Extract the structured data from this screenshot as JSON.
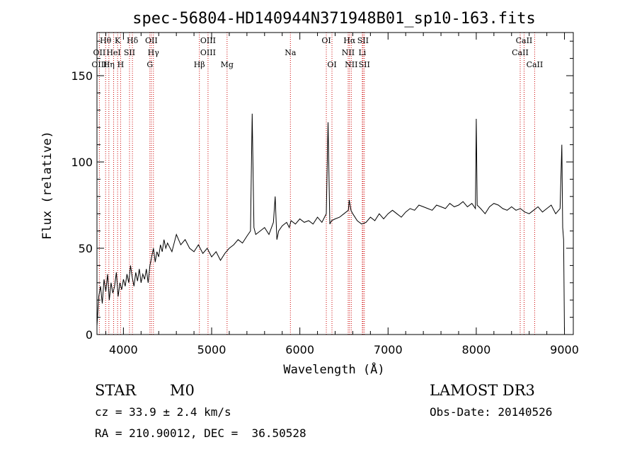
{
  "chart_data": {
    "type": "line",
    "title": "spec-56804-HD140944N371948B01_sp10-163.fits",
    "xlabel": "Wavelength (Å)",
    "ylabel": "Flux (relative)",
    "xlim": [
      3700,
      9100
    ],
    "ylim": [
      0,
      175
    ],
    "x_ticks": [
      4000,
      5000,
      6000,
      7000,
      8000,
      9000
    ],
    "y_ticks": [
      0,
      50,
      100,
      150
    ],
    "grid": false,
    "line_color": "#000000",
    "marker_color": "#cc0000",
    "series": [
      {
        "x": [
          3700,
          3720,
          3740,
          3760,
          3780,
          3800,
          3820,
          3840,
          3860,
          3880,
          3900,
          3920,
          3940,
          3960,
          3980,
          4000,
          4020,
          4040,
          4060,
          4080,
          4100,
          4120,
          4140,
          4160,
          4180,
          4200,
          4220,
          4240,
          4260,
          4280,
          4300,
          4320,
          4340,
          4360,
          4380,
          4400,
          4420,
          4440,
          4460,
          4480,
          4500,
          4550,
          4600,
          4650,
          4700,
          4750,
          4800,
          4850,
          4900,
          4950,
          5000,
          5050,
          5100,
          5150,
          5200,
          5250,
          5300,
          5350,
          5400,
          5440,
          5460,
          5480,
          5500,
          5550,
          5600,
          5650,
          5700,
          5720,
          5740,
          5760,
          5800,
          5850,
          5880,
          5900,
          5950,
          6000,
          6050,
          6100,
          6150,
          6200,
          6250,
          6300,
          6320,
          6340,
          6360,
          6400,
          6450,
          6500,
          6550,
          6560,
          6580,
          6600,
          6650,
          6700,
          6750,
          6800,
          6850,
          6900,
          6950,
          7000,
          7050,
          7100,
          7150,
          7200,
          7250,
          7300,
          7350,
          7400,
          7450,
          7500,
          7550,
          7600,
          7650,
          7700,
          7750,
          7800,
          7850,
          7900,
          7950,
          7990,
          8000,
          8010,
          8050,
          8100,
          8150,
          8200,
          8250,
          8300,
          8350,
          8400,
          8450,
          8500,
          8550,
          8600,
          8650,
          8700,
          8750,
          8800,
          8850,
          8900,
          8950,
          8970,
          8980,
          8990,
          9000
        ],
        "values": [
          5,
          22,
          28,
          18,
          32,
          25,
          35,
          20,
          30,
          24,
          28,
          36,
          22,
          30,
          26,
          32,
          28,
          35,
          30,
          40,
          33,
          28,
          36,
          31,
          38,
          30,
          35,
          32,
          38,
          30,
          40,
          45,
          50,
          42,
          48,
          45,
          52,
          48,
          55,
          50,
          53,
          48,
          58,
          52,
          55,
          50,
          48,
          52,
          47,
          50,
          45,
          48,
          43,
          47,
          50,
          52,
          55,
          53,
          57,
          60,
          128,
          62,
          58,
          60,
          62,
          58,
          65,
          80,
          55,
          60,
          63,
          65,
          62,
          66,
          64,
          67,
          65,
          66,
          64,
          68,
          65,
          70,
          123,
          64,
          66,
          67,
          68,
          70,
          72,
          78,
          72,
          70,
          66,
          64,
          65,
          68,
          66,
          70,
          67,
          70,
          72,
          70,
          68,
          71,
          73,
          72,
          75,
          74,
          73,
          72,
          75,
          74,
          73,
          76,
          74,
          75,
          77,
          74,
          76,
          73,
          125,
          75,
          73,
          70,
          74,
          76,
          75,
          73,
          72,
          74,
          72,
          73,
          71,
          70,
          72,
          74,
          71,
          73,
          75,
          70,
          73,
          110,
          62,
          55,
          2
        ]
      }
    ],
    "lines": [
      {
        "name": "Hθ",
        "x": 3798,
        "row": 0
      },
      {
        "name": "OII",
        "x": 3727,
        "row": 1
      },
      {
        "name": "OIII",
        "x": 3727,
        "row": 2
      },
      {
        "name": "K",
        "x": 3934,
        "row": 0
      },
      {
        "name": "HeI",
        "x": 3889,
        "row": 1
      },
      {
        "name": "Hη",
        "x": 3835,
        "row": 2
      },
      {
        "name": "SII",
        "x": 4069,
        "row": 1
      },
      {
        "name": "H",
        "x": 3968,
        "row": 2
      },
      {
        "name": "Hδ",
        "x": 4102,
        "row": 0
      },
      {
        "name": "OII",
        "x": 4317,
        "row": 0
      },
      {
        "name": "Hγ",
        "x": 4340,
        "row": 1
      },
      {
        "name": "G",
        "x": 4300,
        "row": 2
      },
      {
        "name": "Hβ",
        "x": 4861,
        "row": 2
      },
      {
        "name": "OIII",
        "x": 4959,
        "row": 0
      },
      {
        "name": "OIII",
        "x": 4959,
        "row": 1
      },
      {
        "name": "Mg",
        "x": 5175,
        "row": 2
      },
      {
        "name": "Na",
        "x": 5893,
        "row": 1
      },
      {
        "name": "OI",
        "x": 6300,
        "row": 0
      },
      {
        "name": "OI",
        "x": 6364,
        "row": 2
      },
      {
        "name": "Hα",
        "x": 6563,
        "row": 0
      },
      {
        "name": "NII",
        "x": 6548,
        "row": 1
      },
      {
        "name": "NII",
        "x": 6583,
        "row": 2
      },
      {
        "name": "SII",
        "x": 6716,
        "row": 0
      },
      {
        "name": "Li",
        "x": 6708,
        "row": 1
      },
      {
        "name": "SII",
        "x": 6731,
        "row": 2
      },
      {
        "name": "CaII",
        "x": 8542,
        "row": 0
      },
      {
        "name": "CaII",
        "x": 8498,
        "row": 1
      },
      {
        "name": "CaII",
        "x": 8662,
        "row": 2
      }
    ]
  },
  "info": {
    "object_class": "STAR",
    "subclass": "M0",
    "survey": "LAMOST DR3",
    "cz": "cz = 33.9 ± 2.4 km/s",
    "obs_date": "Obs-Date: 20140526",
    "coords": "RA = 210.90012, DEC =  36.50528"
  }
}
